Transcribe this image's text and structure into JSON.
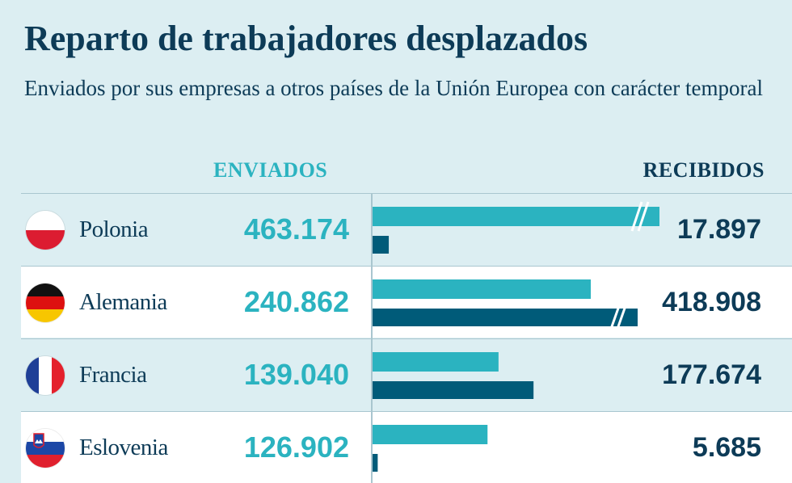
{
  "title": "Reparto de trabajadores desplazados",
  "subtitle": "Enviados por sus empresas a otros países de la Unión Europea con carácter temporal",
  "headers": {
    "sent": "ENVIADOS",
    "received": "RECIBIDOS"
  },
  "colors": {
    "sent": "#2bb3c0",
    "received": "#005b79",
    "title": "#0d3b57",
    "background": "#dceef2"
  },
  "chart_data": {
    "type": "bar",
    "orientation": "horizontal",
    "title": "Reparto de trabajadores desplazados",
    "subtitle": "Enviados por sus empresas a otros países de la Unión Europea con carácter temporal",
    "categories": [
      "Polonia",
      "Alemania",
      "Francia",
      "Eslovenia"
    ],
    "series": [
      {
        "name": "ENVIADOS",
        "values": [
          463174,
          240862,
          139040,
          126902
        ],
        "labels": [
          "463.174",
          "240.862",
          "139.040",
          "126.902"
        ]
      },
      {
        "name": "RECIBIDOS",
        "values": [
          17897,
          418908,
          177674,
          5685
        ],
        "labels": [
          "17.897",
          "418.908",
          "177.674",
          "5.685"
        ]
      }
    ],
    "truncated_bars": [
      {
        "category": "Polonia",
        "series": "ENVIADOS"
      },
      {
        "category": "Alemania",
        "series": "RECIBIDOS"
      }
    ],
    "flags": [
      "poland-flag-icon",
      "germany-flag-icon",
      "france-flag-icon",
      "slovenia-flag-icon"
    ]
  }
}
